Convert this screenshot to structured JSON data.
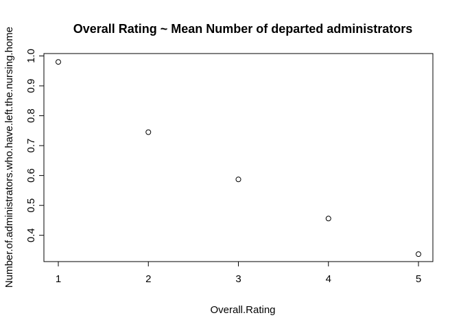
{
  "chart_data": {
    "type": "scatter",
    "title": "Overall Rating ~ Mean Number of departed administrators",
    "xlabel": "Overall.Rating",
    "ylabel": "Number.of.administrators.who.have.left.the.nursing.home",
    "x": [
      1,
      2,
      3,
      4,
      5
    ],
    "y": [
      0.98,
      0.745,
      0.587,
      0.456,
      0.337
    ],
    "xlim": [
      0.84,
      5.16
    ],
    "ylim": [
      0.312,
      1.008
    ],
    "xticks": [
      1,
      2,
      3,
      4,
      5
    ],
    "xtick_labels": [
      "1",
      "2",
      "3",
      "4",
      "5"
    ],
    "yticks": [
      0.4,
      0.5,
      0.6,
      0.7,
      0.8,
      0.9,
      1.0
    ],
    "ytick_labels": [
      "0.4",
      "0.5",
      "0.6",
      "0.7",
      "0.8",
      "0.9",
      "1.0"
    ],
    "grid": false,
    "marker": "open-circle",
    "point_color": "#000000"
  }
}
